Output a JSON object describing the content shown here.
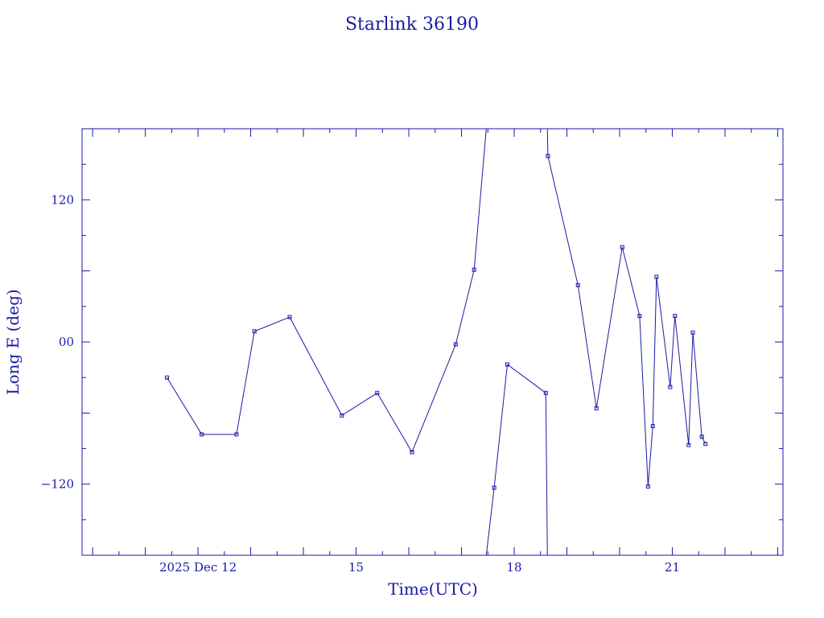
{
  "chart_data": {
    "type": "line",
    "title": "Starlink 36190",
    "xlabel": "Time(UTC)",
    "ylabel": "Long E (deg)",
    "colors": {
      "line": "#1a1aa6",
      "frame": "#1a1aa6"
    },
    "x_unit": "day of December 2025 (UTC)",
    "xlim": [
      9.8,
      23.1
    ],
    "ylim": [
      -180,
      180
    ],
    "x_ticks": [
      {
        "value": 12,
        "label": "2025 Dec 12"
      },
      {
        "value": 15,
        "label": "15"
      },
      {
        "value": 18,
        "label": "18"
      },
      {
        "value": 21,
        "label": "21"
      }
    ],
    "y_ticks": [
      {
        "value": 120,
        "label": "120"
      },
      {
        "value": 0,
        "label": "00"
      },
      {
        "value": -120,
        "label": "−120"
      }
    ],
    "grid": false,
    "points": [
      {
        "x": 11.41,
        "y": -30
      },
      {
        "x": 12.07,
        "y": -78
      },
      {
        "x": 12.73,
        "y": -78
      },
      {
        "x": 13.07,
        "y": 9
      },
      {
        "x": 13.74,
        "y": 21
      },
      {
        "x": 14.73,
        "y": -62
      },
      {
        "x": 15.4,
        "y": -43
      },
      {
        "x": 16.06,
        "y": -93
      },
      {
        "x": 16.89,
        "y": -2
      },
      {
        "x": 17.24,
        "y": 61
      },
      {
        "x": 17.47,
        "y": 180
      },
      {
        "x": 17.47,
        "y": -180
      },
      {
        "x": 17.62,
        "y": -123
      },
      {
        "x": 17.87,
        "y": -19
      },
      {
        "x": 18.6,
        "y": -43
      },
      {
        "x": 18.63,
        "y": -180
      },
      {
        "x": 18.63,
        "y": 180
      },
      {
        "x": 18.64,
        "y": 157
      },
      {
        "x": 19.21,
        "y": 48
      },
      {
        "x": 19.56,
        "y": -56
      },
      {
        "x": 20.05,
        "y": 80
      },
      {
        "x": 20.38,
        "y": 22
      },
      {
        "x": 20.54,
        "y": -122
      },
      {
        "x": 20.63,
        "y": -71
      },
      {
        "x": 20.7,
        "y": 55
      },
      {
        "x": 20.96,
        "y": -38
      },
      {
        "x": 21.05,
        "y": 22
      },
      {
        "x": 21.31,
        "y": -87
      },
      {
        "x": 21.39,
        "y": 8
      },
      {
        "x": 21.56,
        "y": -80
      },
      {
        "x": 21.63,
        "y": -86
      }
    ],
    "markers": [
      {
        "x": 11.41,
        "y": -30
      },
      {
        "x": 12.07,
        "y": -78
      },
      {
        "x": 12.73,
        "y": -78
      },
      {
        "x": 13.07,
        "y": 9
      },
      {
        "x": 13.74,
        "y": 21
      },
      {
        "x": 14.73,
        "y": -62
      },
      {
        "x": 15.4,
        "y": -43
      },
      {
        "x": 16.06,
        "y": -93
      },
      {
        "x": 16.89,
        "y": -2
      },
      {
        "x": 17.24,
        "y": 61
      },
      {
        "x": 17.62,
        "y": -123
      },
      {
        "x": 17.87,
        "y": -19
      },
      {
        "x": 18.6,
        "y": -43
      },
      {
        "x": 18.64,
        "y": 157
      },
      {
        "x": 19.21,
        "y": 48
      },
      {
        "x": 19.56,
        "y": -56
      },
      {
        "x": 20.05,
        "y": 80
      },
      {
        "x": 20.38,
        "y": 22
      },
      {
        "x": 20.54,
        "y": -122
      },
      {
        "x": 20.63,
        "y": -71
      },
      {
        "x": 20.7,
        "y": 55
      },
      {
        "x": 20.96,
        "y": -38
      },
      {
        "x": 21.05,
        "y": 22
      },
      {
        "x": 21.31,
        "y": -87
      },
      {
        "x": 21.39,
        "y": 8
      },
      {
        "x": 21.56,
        "y": -80
      },
      {
        "x": 21.63,
        "y": -86
      }
    ]
  }
}
